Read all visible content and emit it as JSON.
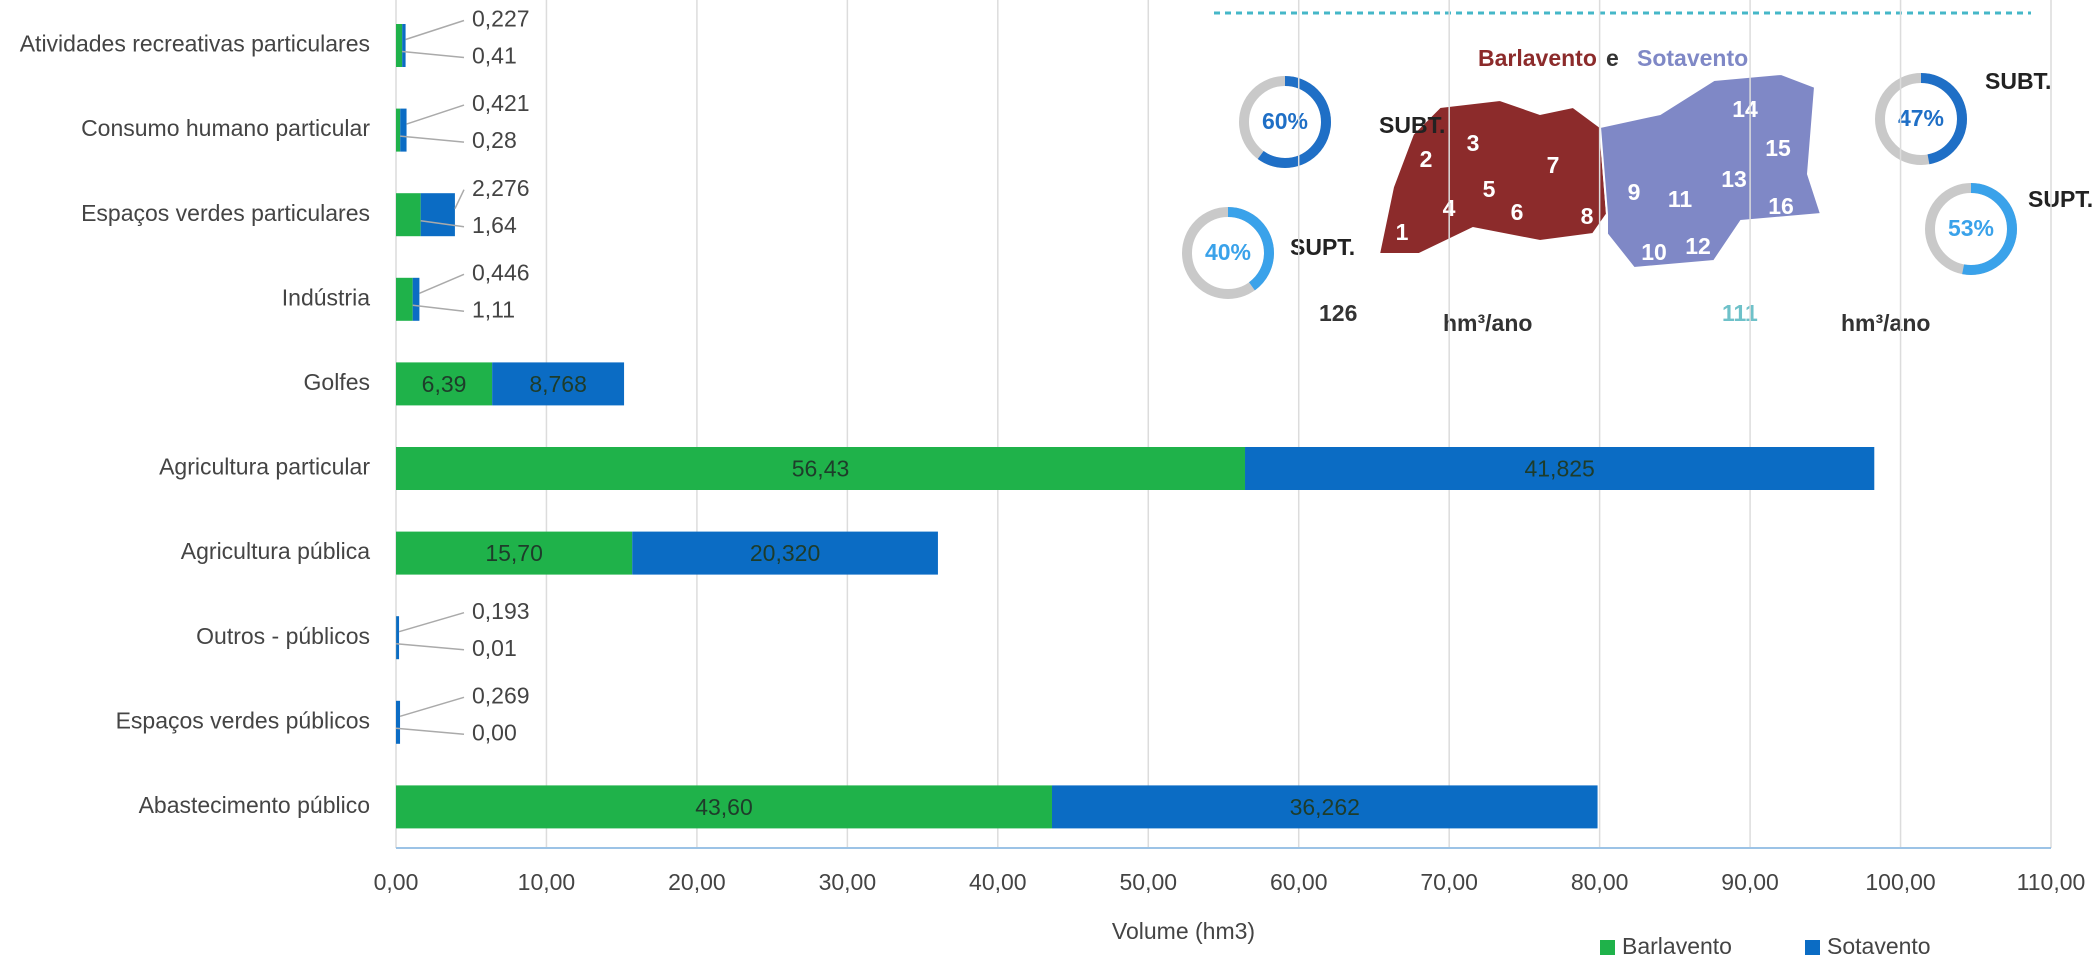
{
  "chart_data": {
    "type": "stacked-barh",
    "categories": [
      "Atividades recreativas  particulares",
      "Consumo humano particular",
      "Espaços verdes particulares",
      "Indústria",
      "Golfes",
      "Agricultura particular",
      "Agricultura pública",
      "Outros - públicos",
      "Espaços verdes públicos",
      "Abastecimento público"
    ],
    "series": [
      {
        "name": "Barlavento",
        "color": "#1fb24a",
        "values": [
          0.41,
          0.28,
          1.64,
          1.11,
          6.39,
          56.43,
          15.7,
          0.01,
          0,
          43.6
        ],
        "value_labels": [
          "0,41",
          "0,28",
          "1,64",
          "1,11",
          "6,39",
          "56,43",
          "15,70",
          "0,01",
          "0,00",
          "43,60"
        ]
      },
      {
        "name": "Sotavento",
        "color": "#0b6cc4",
        "values": [
          0.227,
          0.421,
          2.276,
          0.446,
          8.768,
          41.825,
          20.32,
          0.193,
          0.269,
          36.262
        ],
        "value_labels": [
          "0,227",
          "0,421",
          "2,276",
          "0,446",
          "8,768",
          "41,825",
          "20,320",
          "0,193",
          "0,269",
          "36,262"
        ]
      }
    ],
    "x_label": "Volume (hm3)",
    "xlim": [
      0,
      110
    ],
    "xticks": [
      {
        "value": 0,
        "label": "0,00"
      },
      {
        "value": 10,
        "label": "10,00"
      },
      {
        "value": 20,
        "label": "20,00"
      },
      {
        "value": 30,
        "label": "30,00"
      },
      {
        "value": 40,
        "label": "40,00"
      },
      {
        "value": 50,
        "label": "50,00"
      },
      {
        "value": 60,
        "label": "60,00"
      },
      {
        "value": 70,
        "label": "70,00"
      },
      {
        "value": 80,
        "label": "80,00"
      },
      {
        "value": 90,
        "label": "90,00"
      },
      {
        "value": 100,
        "label": "100,00"
      },
      {
        "value": 110,
        "label": "110,00"
      }
    ],
    "grid": true,
    "legend": "bottom-right"
  },
  "inset": {
    "map_title": [
      "Barlavento",
      "e",
      "Sotavento"
    ],
    "regions": [
      "1",
      "2",
      "3",
      "4",
      "5",
      "6",
      "7",
      "8",
      "9",
      "10",
      "11",
      "12",
      "13",
      "14",
      "15",
      "16"
    ],
    "donuts": {
      "values": [
        60,
        40,
        47,
        53
      ],
      "value_labels": [
        "60%",
        "40%",
        "47%",
        "53%"
      ],
      "captions": [
        "SUBT.",
        "SUPT.",
        "SUBT.",
        "SUPT."
      ],
      "colors": [
        "#1f6fc6",
        "#3aa2ea",
        "#1f6fc6",
        "#3aa2ea"
      ]
    },
    "totals": [
      {
        "value": "126",
        "unit": "hm³/ano"
      },
      {
        "value": "111",
        "unit": "hm³/ano"
      }
    ]
  }
}
